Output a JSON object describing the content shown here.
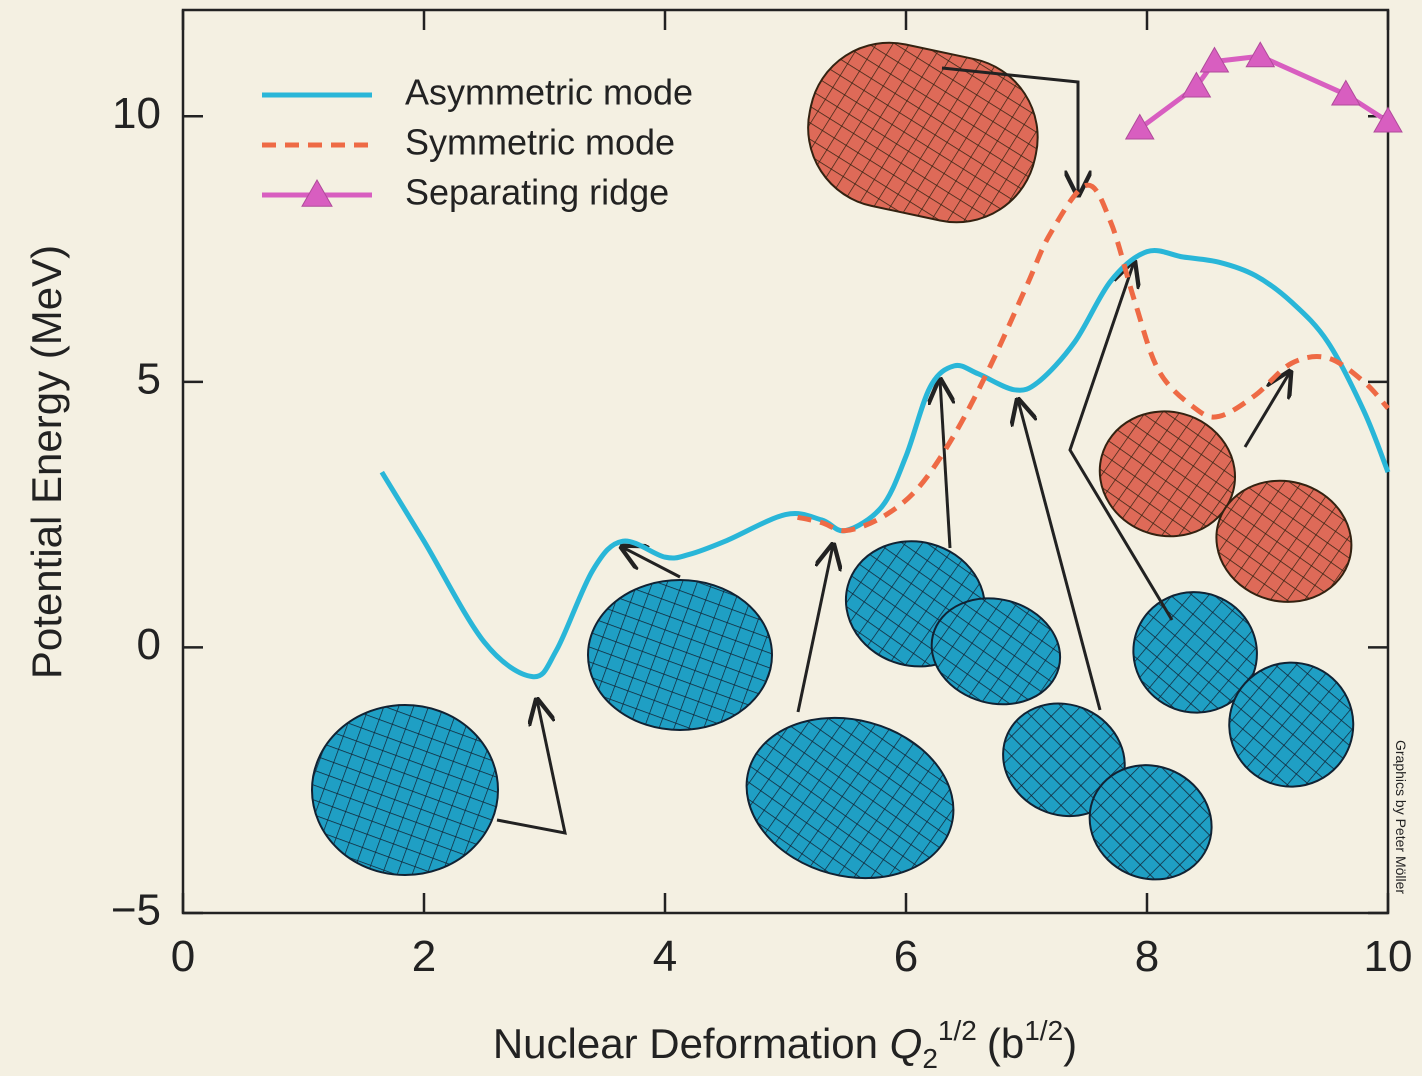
{
  "chart_data": {
    "type": "line",
    "y_label": "Potential Energy (MeV)",
    "x_label": {
      "text": "Nuclear Deformation ",
      "symbol": "Q",
      "subscript": "2",
      "superscript": "1/2",
      "unit": "(b",
      "unit_superscript": "1/2",
      "close": ")"
    },
    "credit": "Graphics by Peter Möller",
    "xlim": [
      0,
      10
    ],
    "ylim": [
      -5,
      12
    ],
    "xticks": [
      0,
      2,
      4,
      6,
      8,
      10
    ],
    "yticks": [
      {
        "value": -5,
        "label": "−5"
      },
      0,
      5,
      10
    ],
    "legend": "top-left",
    "series": [
      {
        "name": "Asymmetric mode",
        "color": "#29b6d8",
        "style": "solid",
        "marker": "none",
        "x": [
          1.65,
          2.0,
          2.5,
          2.9,
          3.1,
          3.4,
          3.65,
          4.0,
          4.2,
          4.5,
          5.0,
          5.3,
          5.5,
          5.8,
          6.0,
          6.2,
          6.4,
          6.6,
          6.9,
          7.1,
          7.4,
          7.7,
          8.0,
          8.3,
          8.6,
          8.9,
          9.2,
          9.5,
          9.8,
          10.0
        ],
        "values": [
          3.3,
          2.0,
          0.1,
          -0.55,
          -0.05,
          1.45,
          2.0,
          1.7,
          1.75,
          2.0,
          2.5,
          2.4,
          2.2,
          2.65,
          3.6,
          4.9,
          5.3,
          5.15,
          4.85,
          5.0,
          5.75,
          6.9,
          7.45,
          7.35,
          7.25,
          7.0,
          6.5,
          5.75,
          4.45,
          3.3
        ]
      },
      {
        "name": "Symmetric mode",
        "color": "#ee6a45",
        "style": "dashed",
        "marker": "none",
        "x": [
          5.1,
          5.3,
          5.5,
          5.8,
          6.1,
          6.4,
          6.7,
          7.0,
          7.2,
          7.5,
          7.7,
          7.9,
          8.1,
          8.4,
          8.6,
          8.9,
          9.2,
          9.5,
          9.8,
          10.0
        ],
        "values": [
          2.45,
          2.35,
          2.2,
          2.45,
          3.0,
          4.0,
          5.3,
          6.8,
          7.8,
          8.7,
          8.0,
          6.5,
          5.2,
          4.5,
          4.35,
          4.75,
          5.35,
          5.45,
          5.0,
          4.5
        ]
      },
      {
        "name": "Separating ridge",
        "color": "#d85ec0",
        "style": "solid",
        "marker": "triangle",
        "x": [
          7.94,
          8.41,
          8.56,
          8.94,
          9.65,
          10.0
        ],
        "values": [
          9.77,
          10.56,
          11.03,
          11.13,
          10.41,
          9.9
        ]
      }
    ]
  }
}
